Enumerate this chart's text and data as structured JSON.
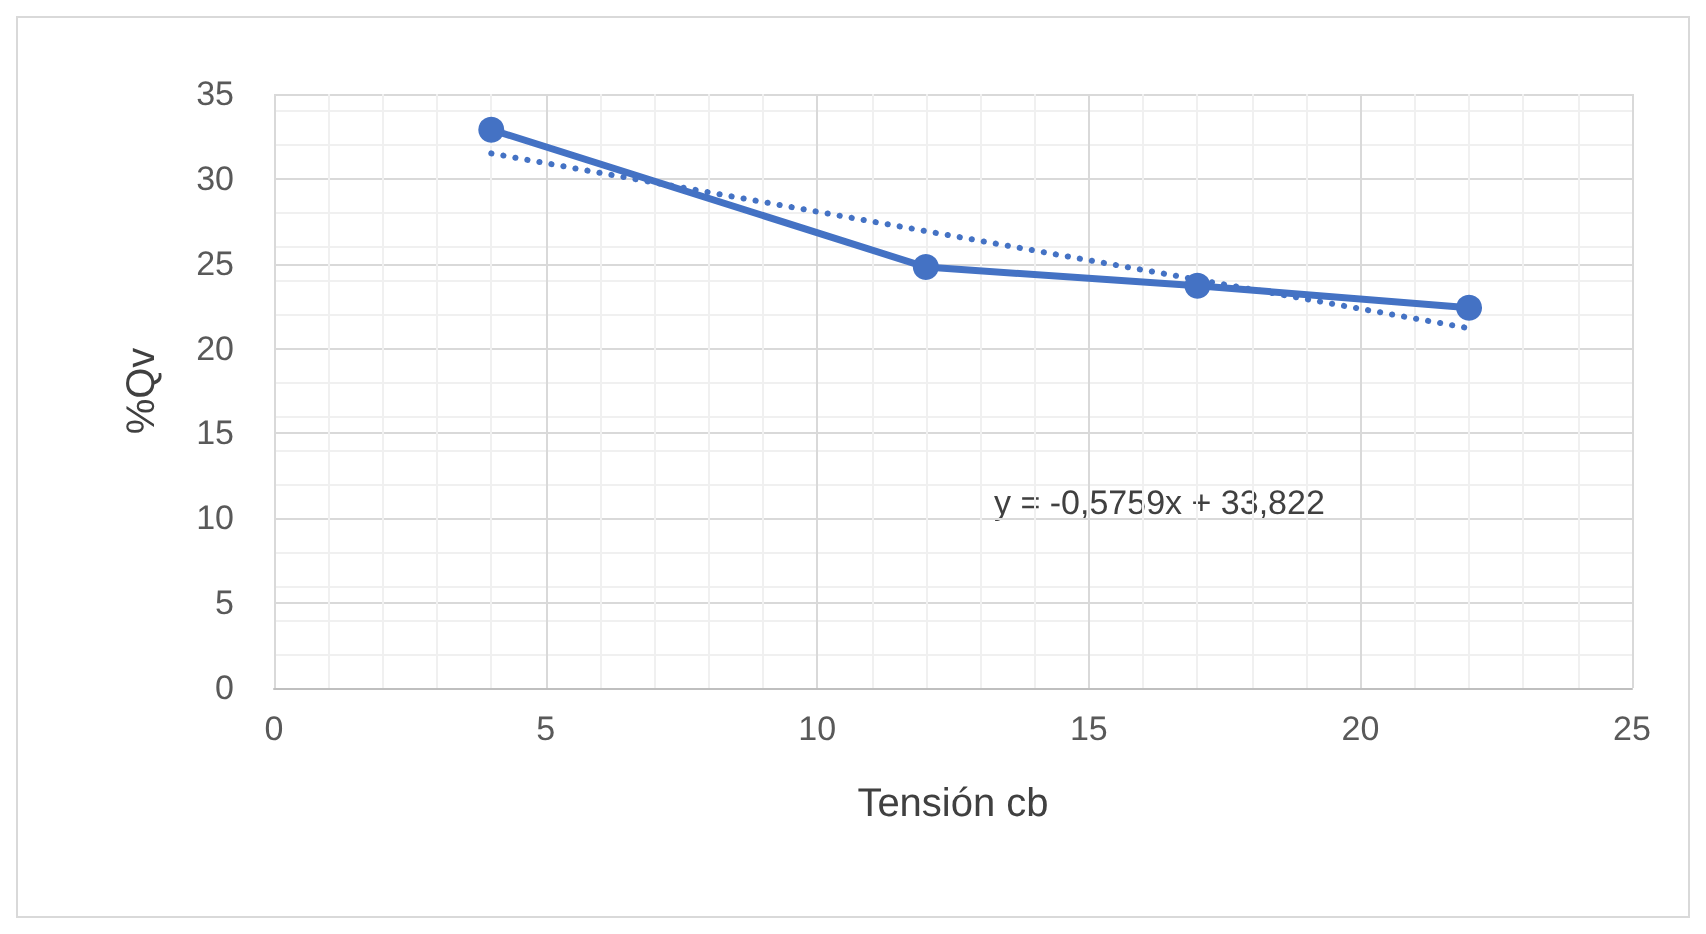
{
  "chart_data": {
    "type": "line",
    "xlabel": "Tensión cb",
    "ylabel": "%Qv",
    "x": [
      4,
      12,
      17,
      22
    ],
    "series": [
      {
        "color": "#4472c4",
        "values": [
          32.9,
          24.8,
          23.7,
          22.4
        ],
        "marker": "circle",
        "line_style": "solid"
      },
      {
        "type": "line",
        "color": "#4472c4",
        "x": [
          4,
          22
        ],
        "values": [
          31.5,
          21.2
        ],
        "marker": "none",
        "line_style": "dotted"
      }
    ],
    "annotations": [
      "y = -0,5759x + 33,822"
    ],
    "xlim": [
      0,
      25
    ],
    "xticks": [
      0,
      5,
      10,
      15,
      20,
      25
    ],
    "ylim": [
      0,
      35
    ],
    "yticks": [
      0,
      5,
      10,
      15,
      20,
      25,
      30,
      35
    ],
    "grid": true
  }
}
